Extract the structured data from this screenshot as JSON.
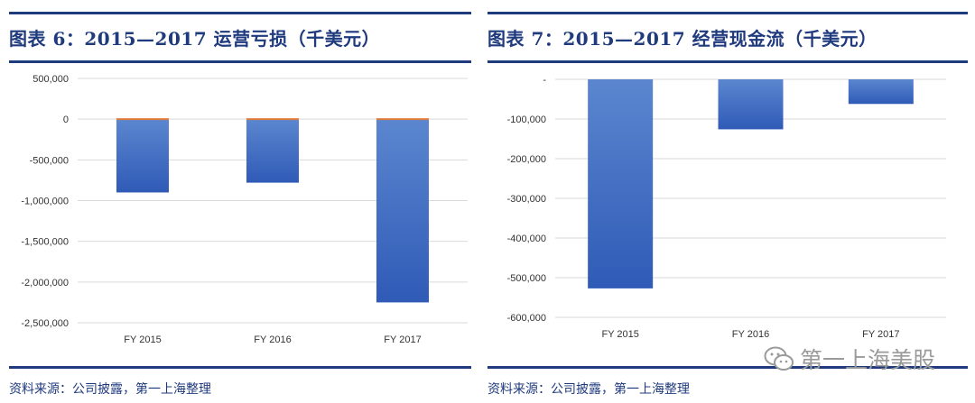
{
  "left": {
    "title": "图表 6：2015—2017 运营亏损（千美元）",
    "source": "资料来源：公司披露，第一上海整理"
  },
  "right": {
    "title": "图表 7：2015—2017 经营现金流（千美元）",
    "source": "资料来源：公司披露，第一上海整理"
  },
  "watermark": {
    "text": "第一上海美股",
    "icon": "wechat-icon"
  },
  "colors": {
    "rule": "#1f3a7d",
    "bar_top": "#5b86cf",
    "bar_bottom": "#2f5bb7",
    "grid": "#d9d9d9",
    "accent_line": "#e07b39"
  },
  "chart_data": [
    {
      "type": "bar",
      "categories": [
        "FY 2015",
        "FY 2016",
        "FY 2017"
      ],
      "values": [
        -900000,
        -780000,
        -2250000
      ],
      "ylim": [
        -2500000,
        500000
      ],
      "yticks": [
        500000,
        0,
        -500000,
        -1000000,
        -1500000,
        -2000000,
        -2500000
      ],
      "ytick_labels": [
        "500,000",
        "0",
        "-500,000",
        "-1,000,000",
        "-1,500,000",
        "-2,000,000",
        "-2,500,000"
      ],
      "grid": true,
      "title": "",
      "xlabel": "",
      "ylabel": ""
    },
    {
      "type": "bar",
      "categories": [
        "FY 2015",
        "FY 2016",
        "FY 2017"
      ],
      "values": [
        -527000,
        -126000,
        -62000
      ],
      "ylim": [
        -600000,
        0
      ],
      "yticks": [
        0,
        -100000,
        -200000,
        -300000,
        -400000,
        -500000,
        -600000
      ],
      "ytick_labels": [
        "-",
        "-100,000",
        "-200,000",
        "-300,000",
        "-400,000",
        "-500,000",
        "-600,000"
      ],
      "grid": true,
      "title": "",
      "xlabel": "",
      "ylabel": ""
    }
  ]
}
